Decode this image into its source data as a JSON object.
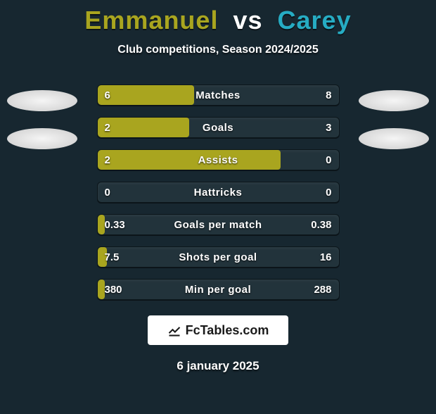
{
  "title": {
    "player1": "Emmanuel",
    "vs": "vs",
    "player2": "Carey",
    "player1_color": "#a9a51f",
    "vs_color": "#ffffff",
    "player2_color": "#26acc3"
  },
  "subtitle": "Club competitions, Season 2024/2025",
  "colors": {
    "background": "#172730",
    "bar_track": "#22333b",
    "player1_bar": "#a9a51f",
    "player2_bar": "#26acc3",
    "text": "#ffffff"
  },
  "bars": [
    {
      "label": "Matches",
      "left_val": "6",
      "right_val": "8",
      "left_pct": 40,
      "right_pct": 0,
      "winner": "left"
    },
    {
      "label": "Goals",
      "left_val": "2",
      "right_val": "3",
      "left_pct": 38,
      "right_pct": 0,
      "winner": "left"
    },
    {
      "label": "Assists",
      "left_val": "2",
      "right_val": "0",
      "left_pct": 76,
      "right_pct": 0,
      "winner": "left"
    },
    {
      "label": "Hattricks",
      "left_val": "0",
      "right_val": "0",
      "left_pct": 0,
      "right_pct": 0,
      "winner": "none"
    },
    {
      "label": "Goals per match",
      "left_val": "0.33",
      "right_val": "0.38",
      "left_pct": 3,
      "right_pct": 0,
      "winner": "left"
    },
    {
      "label": "Shots per goal",
      "left_val": "7.5",
      "right_val": "16",
      "left_pct": 4,
      "right_pct": 0,
      "winner": "left"
    },
    {
      "label": "Min per goal",
      "left_val": "380",
      "right_val": "288",
      "left_pct": 3,
      "right_pct": 0,
      "winner": "left"
    }
  ],
  "brand": "FcTables.com",
  "date": "6 january 2025"
}
